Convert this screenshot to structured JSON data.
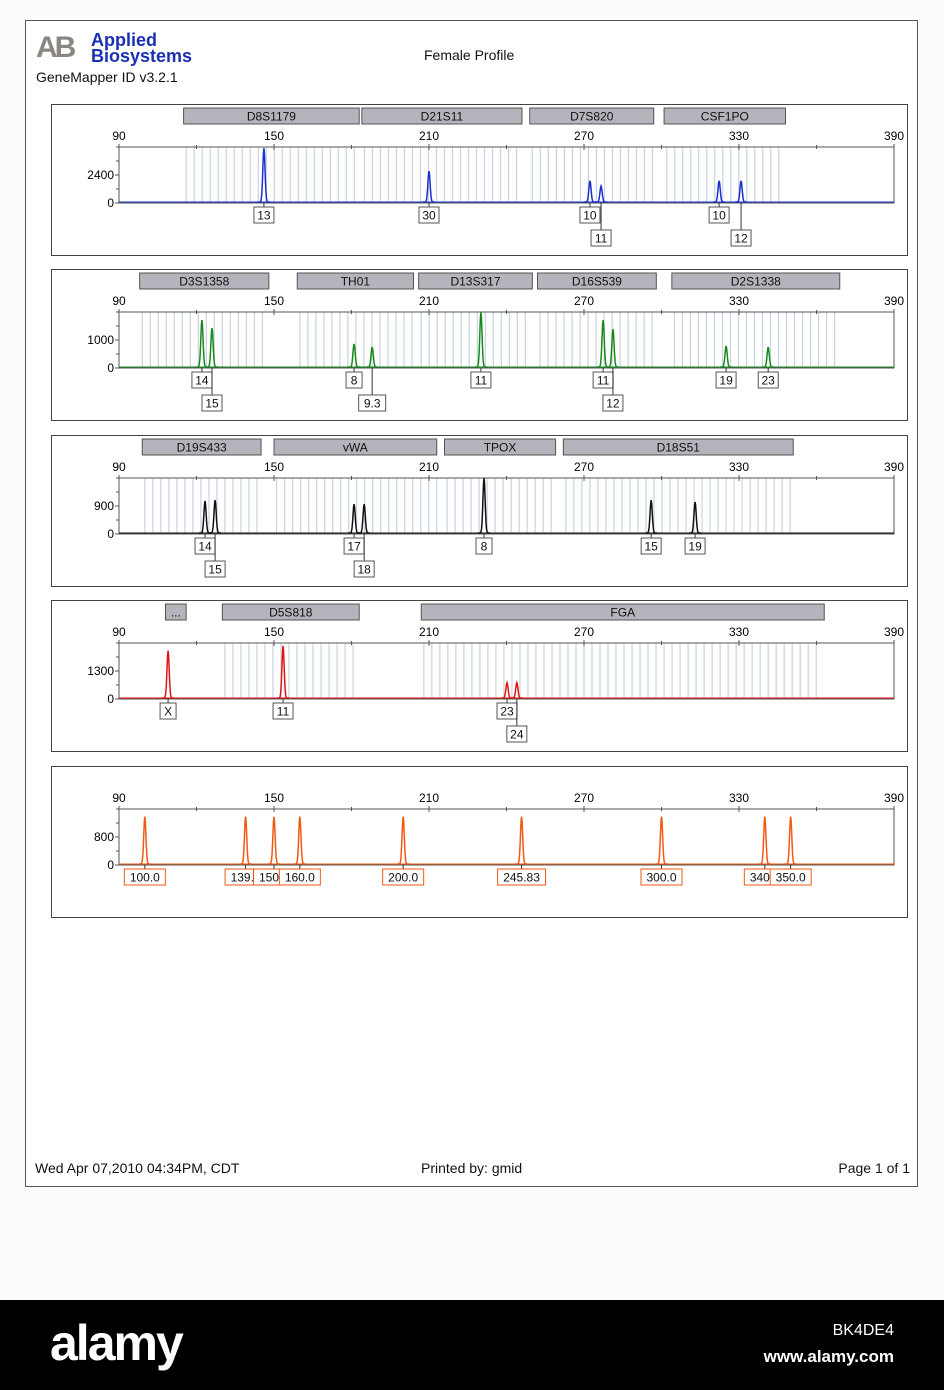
{
  "header": {
    "logo_mark": "AB",
    "logo_line1": "Applied",
    "logo_line2": "Biosystems",
    "app_version": "GeneMapper ID v3.2.1",
    "title": "Female Profile"
  },
  "footer": {
    "timestamp": "Wed Apr 07,2010 04:34PM, CDT",
    "printed_by": "Printed by: gmid",
    "page": "Page 1 of 1"
  },
  "watermark": {
    "logo": "alamy",
    "image_id": "BK4DE4",
    "url": "www.alamy.com"
  },
  "chart_data": [
    {
      "type": "line",
      "dye_color": "#1a2fd0",
      "x_ticks": [
        "90",
        "150",
        "210",
        "270",
        "330",
        "390"
      ],
      "xlim": [
        90,
        390
      ],
      "y_ticks": [
        "2400",
        "0"
      ],
      "ylim": [
        0,
        4800
      ],
      "loci": [
        {
          "name": "D8S1179",
          "range": [
            115,
            183
          ]
        },
        {
          "name": "D21S11",
          "range": [
            184,
            246
          ]
        },
        {
          "name": "D7S820",
          "range": [
            249,
            297
          ]
        },
        {
          "name": "CSF1PO",
          "range": [
            301,
            348
          ]
        }
      ],
      "peaks": [
        {
          "x": 146.1,
          "height": 4700,
          "allele": "13"
        },
        {
          "x": 210.0,
          "height": 2740,
          "allele": "30"
        },
        {
          "x": 272.3,
          "height": 1900,
          "allele": "10"
        },
        {
          "x": 276.6,
          "height": 1450,
          "allele": "11"
        },
        {
          "x": 322.3,
          "height": 1900,
          "allele": "10"
        },
        {
          "x": 330.8,
          "height": 1900,
          "allele": "12"
        }
      ]
    },
    {
      "type": "line",
      "dye_color": "#178a1c",
      "x_ticks": [
        "90",
        "150",
        "210",
        "270",
        "330",
        "390"
      ],
      "xlim": [
        90,
        390
      ],
      "y_ticks": [
        "1000",
        "0"
      ],
      "ylim": [
        0,
        2000
      ],
      "loci": [
        {
          "name": "D3S1358",
          "range": [
            98,
            148
          ]
        },
        {
          "name": "TH01",
          "range": [
            159,
            204
          ]
        },
        {
          "name": "D13S317",
          "range": [
            206,
            250
          ]
        },
        {
          "name": "D16S539",
          "range": [
            252,
            298
          ]
        },
        {
          "name": "D2S1338",
          "range": [
            304,
            369
          ]
        }
      ],
      "peaks": [
        {
          "x": 122.1,
          "height": 1710,
          "allele": "14"
        },
        {
          "x": 126.0,
          "height": 1430,
          "allele": "15"
        },
        {
          "x": 181.0,
          "height": 860,
          "allele": "8"
        },
        {
          "x": 188.0,
          "height": 750,
          "allele": "9.3"
        },
        {
          "x": 230.1,
          "height": 2000,
          "allele": "11"
        },
        {
          "x": 277.4,
          "height": 1710,
          "allele": "11"
        },
        {
          "x": 281.2,
          "height": 1390,
          "allele": "12"
        },
        {
          "x": 325.0,
          "height": 790,
          "allele": "19"
        },
        {
          "x": 341.3,
          "height": 750,
          "allele": "23"
        }
      ]
    },
    {
      "type": "line",
      "dye_color": "#111111",
      "x_ticks": [
        "90",
        "150",
        "210",
        "270",
        "330",
        "390"
      ],
      "xlim": [
        90,
        390
      ],
      "y_ticks": [
        "900",
        "0"
      ],
      "ylim": [
        0,
        1800
      ],
      "loci": [
        {
          "name": "D19S433",
          "range": [
            99,
            145
          ]
        },
        {
          "name": "vWA",
          "range": [
            150,
            213
          ]
        },
        {
          "name": "TPOX",
          "range": [
            216,
            259
          ]
        },
        {
          "name": "D18S51",
          "range": [
            262,
            351
          ]
        }
      ],
      "peaks": [
        {
          "x": 123.3,
          "height": 1060,
          "allele": "14"
        },
        {
          "x": 127.2,
          "height": 1090,
          "allele": "15"
        },
        {
          "x": 181.0,
          "height": 960,
          "allele": "17"
        },
        {
          "x": 184.9,
          "height": 960,
          "allele": "18"
        },
        {
          "x": 231.3,
          "height": 1800,
          "allele": "8"
        },
        {
          "x": 296.0,
          "height": 1090,
          "allele": "15"
        },
        {
          "x": 313.0,
          "height": 1030,
          "allele": "19"
        }
      ]
    },
    {
      "type": "line",
      "dye_color": "#e01414",
      "x_ticks": [
        "90",
        "150",
        "210",
        "270",
        "330",
        "390"
      ],
      "xlim": [
        90,
        390
      ],
      "y_ticks": [
        "1300",
        "0"
      ],
      "ylim": [
        0,
        2600
      ],
      "loci": [
        {
          "name": "...",
          "range": [
            108,
            116
          ]
        },
        {
          "name": "D5S818",
          "range": [
            130,
            183
          ]
        },
        {
          "name": "FGA",
          "range": [
            207,
            363
          ]
        }
      ],
      "peaks": [
        {
          "x": 109.0,
          "height": 2240,
          "allele": "X"
        },
        {
          "x": 153.5,
          "height": 2470,
          "allele": "11"
        },
        {
          "x": 240.2,
          "height": 760,
          "allele": "23"
        },
        {
          "x": 244.0,
          "height": 760,
          "allele": "24"
        }
      ]
    },
    {
      "type": "line",
      "dye_color": "#f05a14",
      "x_ticks": [
        "90",
        "150",
        "210",
        "270",
        "330",
        "390"
      ],
      "xlim": [
        90,
        390
      ],
      "y_ticks": [
        "800",
        "0"
      ],
      "ylim": [
        0,
        1600
      ],
      "loci": [],
      "peaks": [
        {
          "x": 100.0,
          "height": 1380,
          "allele": "100.0"
        },
        {
          "x": 139.0,
          "height": 1380,
          "allele": "139.0"
        },
        {
          "x": 150.0,
          "height": 1380,
          "allele": "150.0"
        },
        {
          "x": 160.0,
          "height": 1380,
          "allele": "160.0"
        },
        {
          "x": 200.0,
          "height": 1380,
          "allele": "200.0"
        },
        {
          "x": 245.83,
          "height": 1380,
          "allele": "245.83"
        },
        {
          "x": 300.0,
          "height": 1380,
          "allele": "300.0"
        },
        {
          "x": 340.0,
          "height": 1380,
          "allele": "340.0"
        },
        {
          "x": 350.0,
          "height": 1380,
          "allele": "350.0"
        }
      ]
    }
  ]
}
